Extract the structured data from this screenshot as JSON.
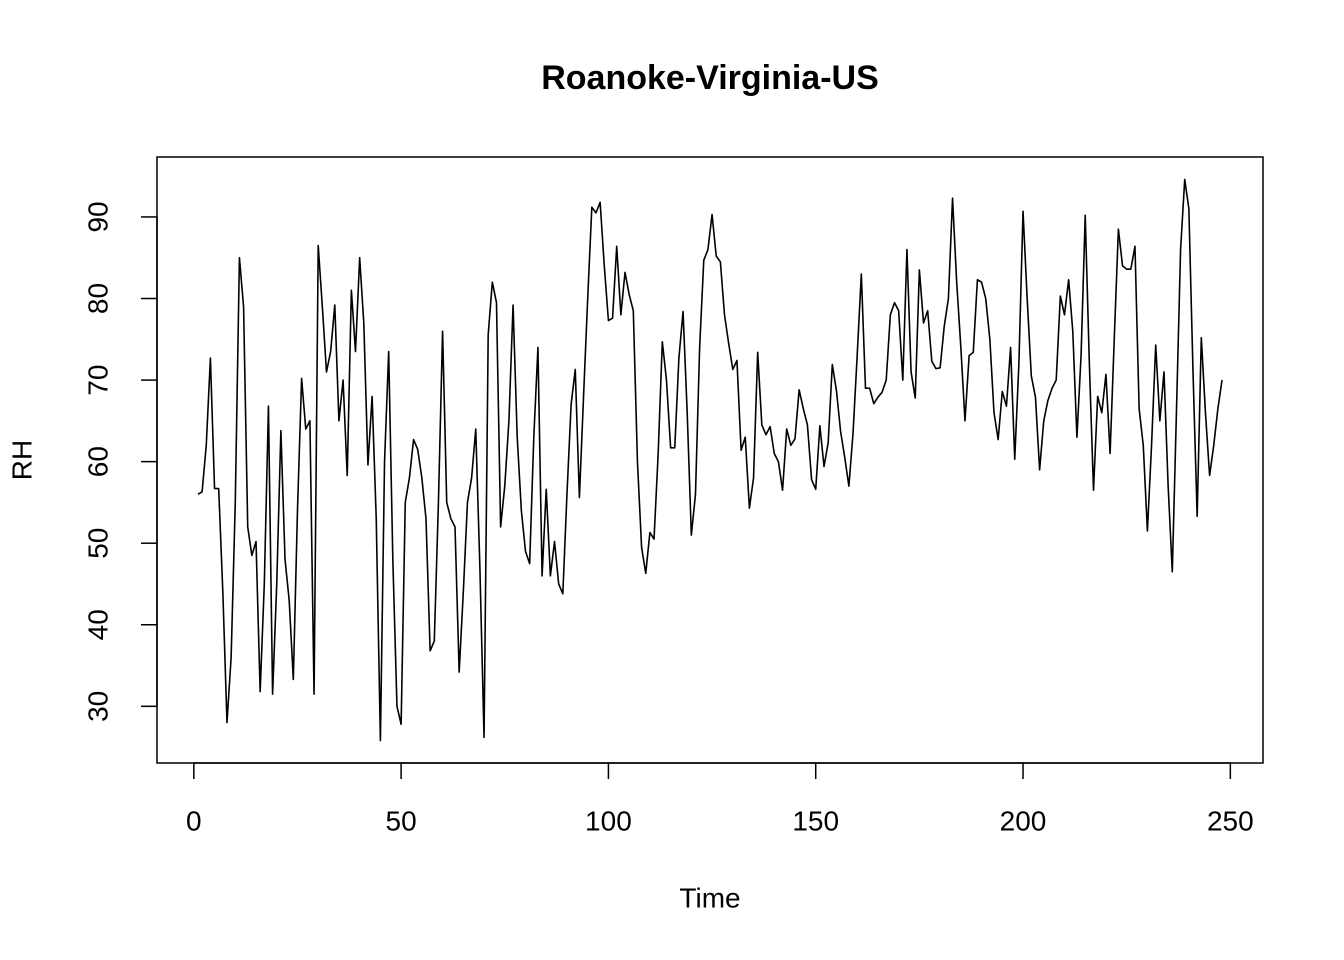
{
  "chart_data": {
    "type": "line",
    "title": "Roanoke-Virginia-US",
    "x_label": "Time",
    "y_label": "RH",
    "x": [
      1,
      2,
      3,
      4,
      5,
      6,
      7,
      8,
      9,
      10,
      11,
      12,
      13,
      14,
      15,
      16,
      17,
      18,
      19,
      20,
      21,
      22,
      23,
      24,
      25,
      26,
      27,
      28,
      29,
      30,
      31,
      32,
      33,
      34,
      35,
      36,
      37,
      38,
      39,
      40,
      41,
      42,
      43,
      44,
      45,
      46,
      47,
      48,
      49,
      50,
      51,
      52,
      53,
      54,
      55,
      56,
      57,
      58,
      59,
      60,
      61,
      62,
      63,
      64,
      65,
      66,
      67,
      68,
      69,
      70,
      71,
      72,
      73,
      74,
      75,
      76,
      77,
      78,
      79,
      80,
      81,
      82,
      83,
      84,
      85,
      86,
      87,
      88,
      89,
      90,
      91,
      92,
      93,
      94,
      95,
      96,
      97,
      98,
      99,
      100,
      101,
      102,
      103,
      104,
      105,
      106,
      107,
      108,
      109,
      110,
      111,
      112,
      113,
      114,
      115,
      116,
      117,
      118,
      119,
      120,
      121,
      122,
      123,
      124,
      125,
      126,
      127,
      128,
      129,
      130,
      131,
      132,
      133,
      134,
      135,
      136,
      137,
      138,
      139,
      140,
      141,
      142,
      143,
      144,
      145,
      146,
      147,
      148,
      149,
      150,
      151,
      152,
      153,
      154,
      155,
      156,
      157,
      158,
      159,
      160,
      161,
      162,
      163,
      164,
      165,
      166,
      167,
      168,
      169,
      170,
      171,
      172,
      173,
      174,
      175,
      176,
      177,
      178,
      179,
      180,
      181,
      182,
      183,
      184,
      185,
      186,
      187,
      188,
      189,
      190,
      191,
      192,
      193,
      194,
      195,
      196,
      197,
      198,
      199,
      200,
      201,
      202,
      203,
      204,
      205,
      206,
      207,
      208,
      209,
      210,
      211,
      212,
      213,
      214,
      215,
      216,
      217,
      218,
      219,
      220,
      221,
      222,
      223,
      224,
      225,
      226,
      227,
      228,
      229,
      230,
      231,
      232,
      233,
      234,
      235,
      236,
      237,
      238,
      239,
      240,
      241,
      242,
      243,
      244,
      245,
      246,
      247,
      248
    ],
    "series": [
      {
        "color": "#000000",
        "values": [
          56,
          56.3,
          62,
          72.7,
          56.7,
          56.7,
          44,
          28,
          36,
          55,
          85,
          79,
          52,
          48.5,
          50.2,
          31.8,
          45,
          66.8,
          31.5,
          45,
          63.8,
          48,
          43,
          33.3,
          54,
          70.2,
          64,
          65,
          31.5,
          86.5,
          79,
          71,
          73.5,
          79.2,
          65,
          70,
          58.3,
          81,
          73.5,
          85,
          77,
          59.6,
          68,
          53,
          25.8,
          60,
          73.5,
          48,
          30,
          27.8,
          55,
          58,
          62.7,
          61.5,
          58,
          53,
          36.8,
          38,
          55,
          76,
          55,
          53,
          52,
          34.2,
          44,
          55,
          58,
          64,
          47,
          26.2,
          75.6,
          82,
          79.5,
          52,
          57,
          65,
          79.2,
          63,
          54,
          49,
          47.5,
          63,
          74,
          46,
          56.6,
          46,
          50.2,
          45,
          43.8,
          56,
          67,
          71.3,
          55.6,
          68,
          80,
          91.2,
          90.5,
          91.8,
          84,
          77.3,
          77.6,
          86.4,
          78,
          83.2,
          80.5,
          78.5,
          60,
          49.5,
          46.3,
          51.3,
          50.5,
          61,
          74.7,
          70,
          61.7,
          61.7,
          72.7,
          78.4,
          66,
          51,
          56,
          74,
          84.7,
          86,
          90.3,
          85.2,
          84.5,
          78,
          74.5,
          71.3,
          72.4,
          61.4,
          63,
          54.3,
          58,
          73.4,
          64.5,
          63.3,
          64.3,
          61,
          60,
          56.5,
          64,
          62,
          62.8,
          68.8,
          66.5,
          64.5,
          57.8,
          56.6,
          64.4,
          59.4,
          62.3,
          71.9,
          68.7,
          63.7,
          60.5,
          57,
          63.5,
          73,
          83,
          69,
          69,
          67.1,
          67.9,
          68.5,
          70,
          78,
          79.5,
          78.5,
          70,
          86,
          71,
          67.8,
          83.5,
          77,
          78.5,
          72.3,
          71.4,
          71.5,
          76.6,
          80,
          92.3,
          82,
          74,
          65,
          73,
          73.4,
          82.3,
          82,
          80,
          75,
          66,
          62.7,
          68.6,
          66.8,
          74,
          60.3,
          72,
          90.7,
          80,
          70.5,
          67.9,
          59,
          65,
          67.5,
          69,
          70,
          80.3,
          78,
          82.3,
          76,
          63,
          73,
          90.2,
          72,
          56.5,
          68,
          66,
          70.7,
          61,
          75,
          88.5,
          84,
          83.6,
          83.6,
          86.4,
          66.5,
          62,
          51.5,
          62,
          74.3,
          65,
          71,
          57,
          46.5,
          66,
          86,
          94.6,
          91,
          71,
          53.3,
          75.2,
          66,
          58.3,
          62,
          66.5,
          70
        ]
      }
    ],
    "xlim": [
      -8.88,
      257.88
    ],
    "ylim": [
      23.05,
      97.35
    ],
    "xticks": [
      0,
      50,
      100,
      150,
      200,
      250
    ],
    "yticks": [
      30,
      40,
      50,
      60,
      70,
      80,
      90
    ]
  }
}
